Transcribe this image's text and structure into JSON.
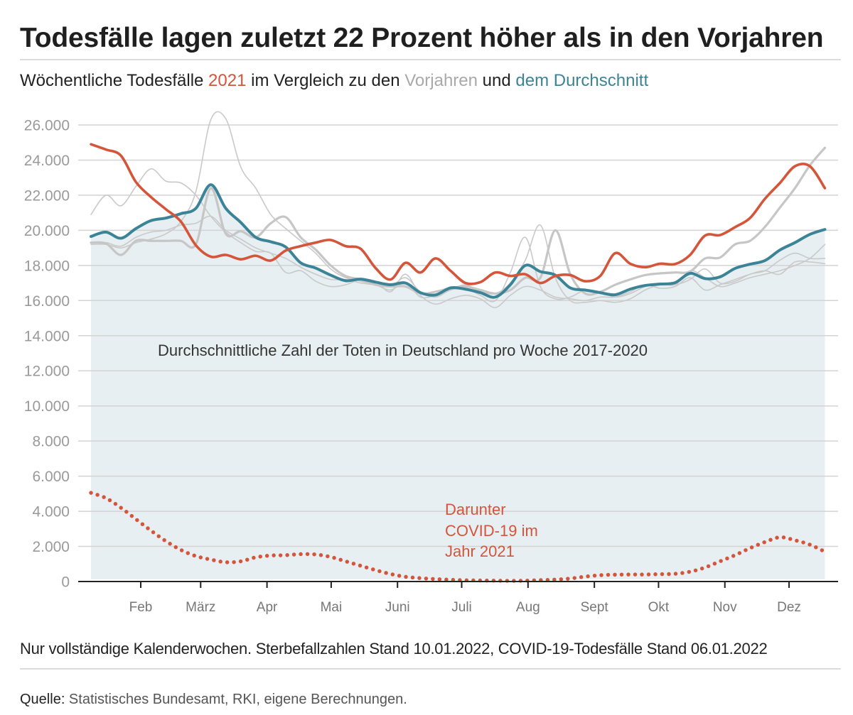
{
  "header": {
    "title": "Todesfälle lagen zuletzt 22 Prozent höher als in den Vorjahren",
    "subtitle": {
      "part1": "Wöchentliche Todesfälle ",
      "highlight_2021": "2021",
      "part2": " im Vergleich zu den ",
      "highlight_prev": "Vorjahren",
      "part3": " und ",
      "highlight_avg": "dem Durchschnitt"
    }
  },
  "colors": {
    "year_2021": "#d4553a",
    "average": "#3b8497",
    "previous_years": "#c8c8c8",
    "average_fill": "#e8eff2",
    "grid": "#d3d3d3",
    "axis": "#222222"
  },
  "chart_data": {
    "type": "line",
    "title": "Todesfälle lagen zuletzt 22 Prozent höher als in den Vorjahren",
    "subtitle": "Wöchentliche Todesfälle 2021 im Vergleich zu den Vorjahren und dem Durchschnitt",
    "xlabel": "",
    "ylabel": "",
    "ylim": [
      0,
      26000
    ],
    "grid": true,
    "legend": "none",
    "x": [
      1,
      2,
      3,
      4,
      5,
      6,
      7,
      8,
      9,
      10,
      11,
      12,
      13,
      14,
      15,
      16,
      17,
      18,
      19,
      20,
      21,
      22,
      23,
      24,
      25,
      26,
      27,
      28,
      29,
      30,
      31,
      32,
      33,
      34,
      35,
      36,
      37,
      38,
      39,
      40,
      41,
      42,
      43,
      44,
      45,
      46,
      47,
      48,
      49,
      50
    ],
    "y_ticks": [
      {
        "value": 0,
        "label": "0"
      },
      {
        "value": 2000,
        "label": "2.000"
      },
      {
        "value": 4000,
        "label": "4.000"
      },
      {
        "value": 6000,
        "label": "6.000"
      },
      {
        "value": 8000,
        "label": "8.000"
      },
      {
        "value": 10000,
        "label": "10.000"
      },
      {
        "value": 12000,
        "label": "12.000"
      },
      {
        "value": 14000,
        "label": "14.000"
      },
      {
        "value": 16000,
        "label": "16.000"
      },
      {
        "value": 18000,
        "label": "18.000"
      },
      {
        "value": 20000,
        "label": "20.000"
      },
      {
        "value": 22000,
        "label": "22.000"
      },
      {
        "value": 24000,
        "label": "24.000"
      },
      {
        "value": 26000,
        "label": "26.000"
      }
    ],
    "x_ticks": [
      {
        "label": "Feb",
        "date": "2021-02-01"
      },
      {
        "label": "März",
        "date": "2021-03-01"
      },
      {
        "label": "Apr",
        "date": "2021-04-01"
      },
      {
        "label": "Mai",
        "date": "2021-05-01"
      },
      {
        "label": "Juni",
        "date": "2021-06-01"
      },
      {
        "label": "Juli",
        "date": "2021-07-01"
      },
      {
        "label": "Aug",
        "date": "2021-08-01"
      },
      {
        "label": "Sept",
        "date": "2021-09-01"
      },
      {
        "label": "Okt",
        "date": "2021-10-01"
      },
      {
        "label": "Nov",
        "date": "2021-11-01"
      },
      {
        "label": "Dez",
        "date": "2021-12-01"
      }
    ],
    "series": [
      {
        "name": "Vorjahren",
        "style": "previous",
        "color": "#c9c9c9",
        "values": [
          20900,
          22000,
          21400,
          22500,
          23500,
          22800,
          22700,
          22000,
          20800,
          19900,
          19300,
          18800,
          18700,
          17600,
          17700,
          17100,
          16800,
          16900,
          17200,
          17100,
          16500,
          17500,
          16300,
          15800,
          16100,
          16300,
          16100,
          15600,
          16300,
          16800,
          16600,
          16200,
          16100,
          16000,
          16200,
          16200,
          16500,
          16900,
          16700,
          16800,
          17300,
          16600,
          16900,
          17200,
          17500,
          17700,
          17500,
          18200,
          18200,
          18100
        ]
      },
      {
        "name": "Vorjahren",
        "style": "previous",
        "color": "#c9c9c9",
        "values": [
          19200,
          19200,
          19000,
          19300,
          19500,
          19800,
          20500,
          22200,
          26300,
          26350,
          23600,
          22400,
          20900,
          20100,
          19400,
          18700,
          17800,
          17300,
          17100,
          16900,
          16600,
          17000,
          16200,
          16300,
          16600,
          16900,
          16500,
          16400,
          17000,
          18300,
          20300,
          17300,
          16000,
          15900,
          16000,
          15900,
          16100,
          16600,
          16900,
          16900,
          17200,
          17800,
          17000,
          17100,
          17500,
          17700,
          18300,
          18700,
          18400,
          18400
        ]
      },
      {
        "name": "Vorjahren",
        "style": "previous",
        "color": "#c9c9c9",
        "values": [
          19300,
          19300,
          19100,
          19600,
          19900,
          20000,
          20300,
          20400,
          20800,
          20000,
          19500,
          19000,
          18700,
          18400,
          17900,
          17500,
          17200,
          17200,
          17000,
          16900,
          16800,
          17300,
          16500,
          16200,
          16600,
          16700,
          16300,
          16000,
          17600,
          19600,
          16800,
          16100,
          16200,
          16600,
          16500,
          16200,
          16400,
          16800,
          17000,
          16900,
          17700,
          17300,
          16800,
          17000,
          17300,
          17500,
          17700,
          18000,
          18400,
          19200
        ]
      },
      {
        "name": "Vorjahren",
        "style": "previous-bold",
        "color": "#c6c6c6",
        "values": [
          19300,
          19250,
          18600,
          19400,
          19400,
          19400,
          19400,
          19200,
          22400,
          19800,
          19950,
          19600,
          20400,
          20750,
          19600,
          18900,
          18000,
          17400,
          17200,
          16900,
          16800,
          16800,
          16400,
          16500,
          16700,
          16800,
          16600,
          16400,
          16600,
          17300,
          17300,
          20000,
          17500,
          16400,
          16500,
          16900,
          17200,
          17450,
          17550,
          17600,
          17650,
          18400,
          18450,
          19200,
          19400,
          20200,
          21300,
          22400,
          23700,
          24700
        ]
      },
      {
        "name": "dem Durchschnitt",
        "style": "average",
        "color": "#3b8497",
        "fill": "#e8eff2",
        "values": [
          19650,
          19900,
          19550,
          20100,
          20550,
          20700,
          20950,
          21250,
          22600,
          21250,
          20450,
          19600,
          19350,
          19050,
          18150,
          17850,
          17450,
          17130,
          17220,
          17050,
          16900,
          17000,
          16450,
          16320,
          16720,
          16650,
          16450,
          16200,
          16900,
          18000,
          17650,
          17450,
          16720,
          16600,
          16450,
          16330,
          16650,
          16860,
          16940,
          17020,
          17550,
          17250,
          17350,
          17830,
          18070,
          18280,
          18880,
          19300,
          19770,
          20050
        ]
      },
      {
        "name": "2021",
        "style": "primary",
        "color": "#d4553a",
        "values": [
          24900,
          24600,
          24250,
          22750,
          21900,
          21200,
          20500,
          19150,
          18500,
          18600,
          18350,
          18550,
          18280,
          18850,
          19100,
          19300,
          19450,
          19100,
          18950,
          17850,
          17200,
          18150,
          17600,
          18400,
          17700,
          17000,
          17050,
          17600,
          17400,
          17500,
          17000,
          17400,
          17450,
          17100,
          17400,
          18700,
          18100,
          17900,
          18100,
          18080,
          18600,
          19700,
          19730,
          20180,
          20700,
          21800,
          22700,
          23650,
          23650,
          22400
        ]
      },
      {
        "name": "Darunter COVID-19 im Jahr 2021",
        "style": "dotted",
        "color": "#d4553a",
        "values": [
          5050,
          4750,
          4200,
          3550,
          2900,
          2300,
          1800,
          1450,
          1250,
          1100,
          1150,
          1380,
          1480,
          1500,
          1560,
          1540,
          1400,
          1150,
          900,
          650,
          430,
          270,
          190,
          140,
          100,
          70,
          60,
          50,
          40,
          50,
          80,
          110,
          170,
          280,
          360,
          390,
          400,
          400,
          420,
          440,
          560,
          800,
          1150,
          1500,
          1900,
          2250,
          2520,
          2350,
          2100,
          1700
        ]
      }
    ],
    "annotations": {
      "average_label": "Durchschnittliche Zahl der Toten in Deutschland pro Woche 2017-2020",
      "covid_label": [
        "Darunter",
        "COVID-19 im",
        "Jahr 2021"
      ]
    }
  },
  "footer": {
    "note": "Nur vollständige Kalenderwochen. Sterbefallzahlen Stand 10.01.2022, COVID-19-Todesfälle Stand 06.01.2022",
    "source_label": "Quelle:",
    "source_text": " Statistisches Bundesamt, RKI, eigene Berechnungen."
  }
}
